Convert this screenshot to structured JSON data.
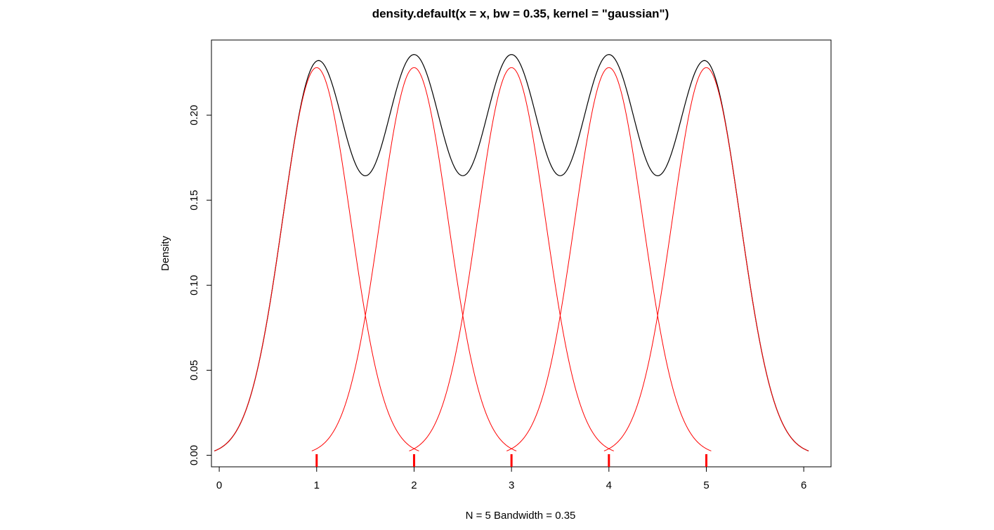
{
  "chart_data": {
    "type": "line",
    "title": "density.default(x = x, bw = 0.35, kernel = \"gaussian\")",
    "xlabel": "N = 5   Bandwidth = 0.35",
    "ylabel": "Density",
    "x_ticks": [
      "0",
      "1",
      "2",
      "3",
      "4",
      "5",
      "6"
    ],
    "y_ticks": [
      "0.00",
      "0.05",
      "0.10",
      "0.15",
      "0.20"
    ],
    "xlim": [
      -0.08,
      6.28
    ],
    "ylim": [
      -0.0068,
      0.2442
    ],
    "grid": false,
    "legend": "none",
    "data_points": [
      1,
      2,
      3,
      4,
      5
    ],
    "bandwidth": 0.35,
    "n": 5,
    "kernel": "gaussian",
    "series": [
      {
        "x_range": [
          -0.05,
          6.05
        ],
        "color": "#000000"
      },
      {
        "center": 1,
        "x_range": [
          -0.05,
          2.05
        ],
        "color": "#ff0000"
      },
      {
        "center": 2,
        "x_range": [
          0.95,
          3.05
        ],
        "color": "#ff0000"
      },
      {
        "center": 3,
        "x_range": [
          1.95,
          4.05
        ],
        "color": "#ff0000"
      },
      {
        "center": 4,
        "x_range": [
          2.95,
          5.05
        ],
        "color": "#ff0000"
      },
      {
        "center": 5,
        "x_range": [
          3.95,
          6.05
        ],
        "color": "#ff0000"
      }
    ],
    "rug_color": "#ff0000"
  }
}
